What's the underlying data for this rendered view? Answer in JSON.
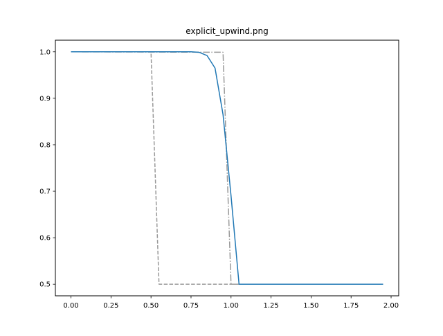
{
  "chart_data": {
    "type": "line",
    "title": "explicit_upwind.png",
    "xlabel": "",
    "ylabel": "",
    "xlim": [
      -0.0975,
      2.0475
    ],
    "ylim": [
      0.475,
      1.025
    ],
    "xticks": [
      0.0,
      0.25,
      0.5,
      0.75,
      1.0,
      1.25,
      1.5,
      1.75,
      2.0
    ],
    "xtick_labels": [
      "0.00",
      "0.25",
      "0.50",
      "0.75",
      "1.00",
      "1.25",
      "1.50",
      "1.75",
      "2.00"
    ],
    "yticks": [
      0.5,
      0.6,
      0.7,
      0.8,
      0.9,
      1.0
    ],
    "ytick_labels": [
      "0.5",
      "0.6",
      "0.7",
      "0.8",
      "0.9",
      "1.0"
    ],
    "grid": false,
    "legend": "none",
    "series": [
      {
        "style": "dashed",
        "color": "#999999",
        "x": [
          0.0,
          0.5,
          0.55,
          1.95
        ],
        "y": [
          1.0,
          1.0,
          0.5,
          0.5
        ]
      },
      {
        "style": "dashdot",
        "color": "#999999",
        "x": [
          0.0,
          0.95,
          1.0,
          1.95
        ],
        "y": [
          1.0,
          0.999,
          0.5,
          0.5
        ]
      },
      {
        "style": "solid",
        "color": "#1f77b4",
        "x": [
          0.0,
          0.75,
          0.8,
          0.85,
          0.9,
          0.95,
          1.0,
          1.05,
          1.95
        ],
        "y": [
          1.0,
          1.0,
          0.999,
          0.992,
          0.965,
          0.865,
          0.69,
          0.5,
          0.5
        ]
      }
    ]
  }
}
